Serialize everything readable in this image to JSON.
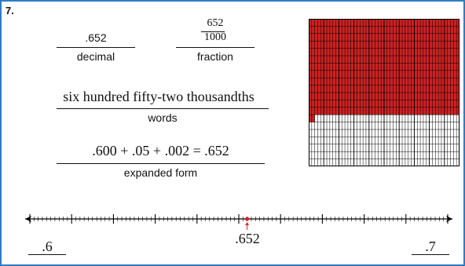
{
  "problem_number": "7.",
  "decimal": {
    "value": ".652",
    "label": "decimal"
  },
  "fraction": {
    "numerator": "652",
    "denominator": "1000",
    "label": "fraction"
  },
  "words": {
    "value": "six hundred fifty-two thousandths",
    "label": "words"
  },
  "expanded": {
    "value": ".600 + .05 + .002 = .652",
    "label": "expanded form"
  },
  "grid": {
    "rows": 20,
    "cols": 20,
    "shaded_fraction": 0.652,
    "fill_color": "#cc2222",
    "empty_color": "#ffffff",
    "line_color": "#000000"
  },
  "number_line": {
    "min": 0.6,
    "max": 0.7,
    "minor_ticks": 100,
    "point_value": 0.652,
    "point_color": "#dd2222",
    "left_label": ".6",
    "right_label": ".7",
    "point_label": ".652"
  }
}
